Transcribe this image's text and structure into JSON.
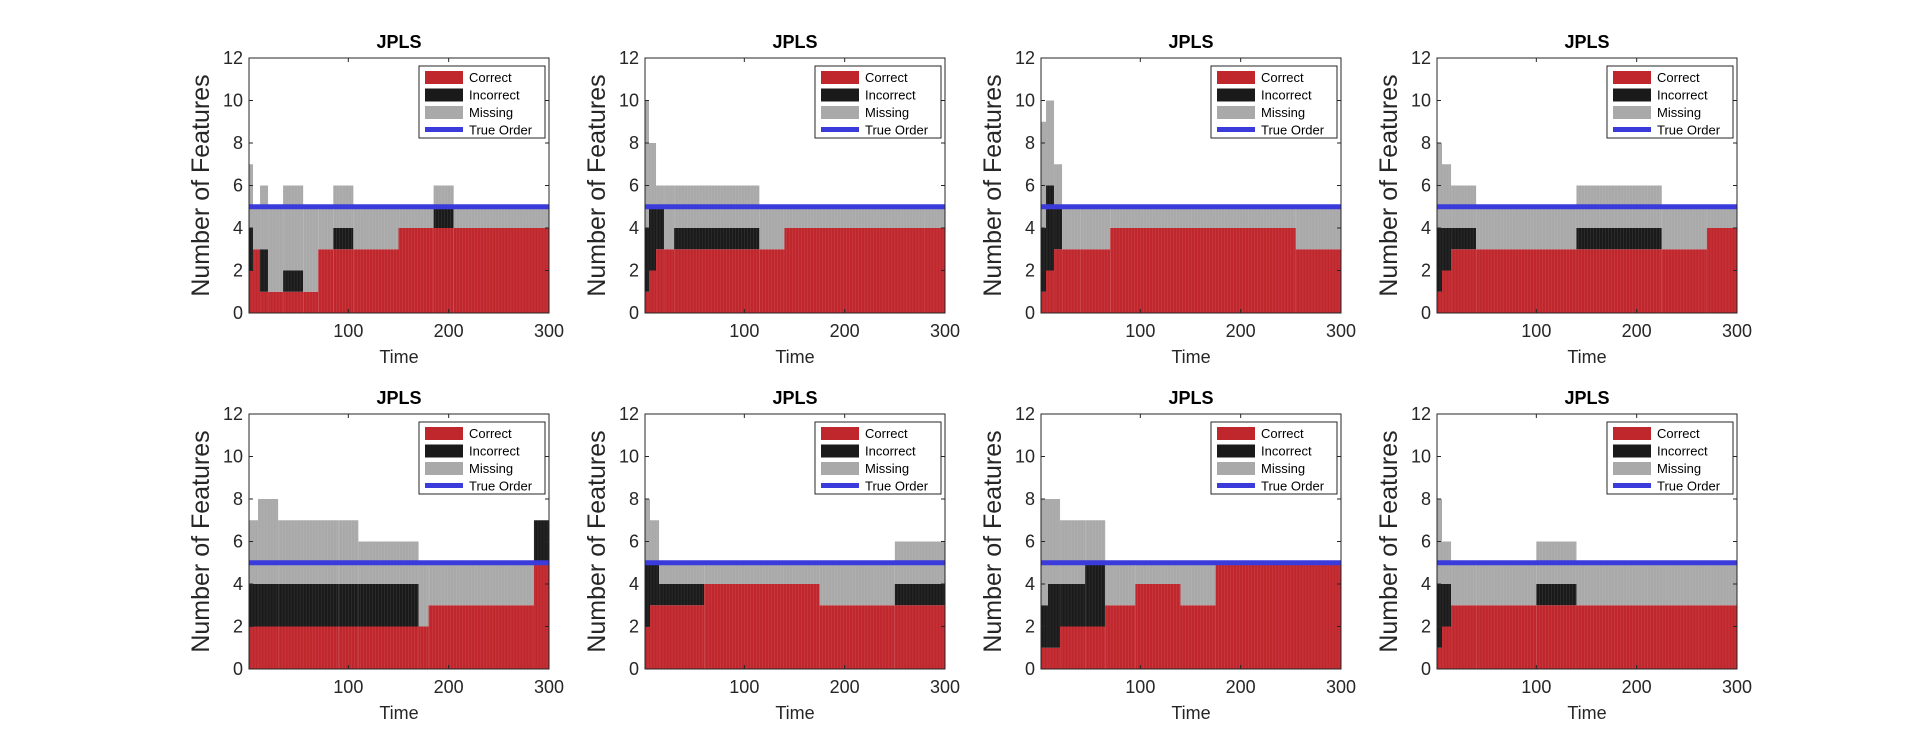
{
  "figure": {
    "background": "#ffffff"
  },
  "legend_labels": {
    "correct": "Correct",
    "incorrect": "Incorrect",
    "missing": "Missing",
    "true_order": "True Order"
  },
  "colors": {
    "correct": "#c0272d",
    "incorrect": "#1a1a1a",
    "missing": "#a9a9a9",
    "true_order": "#3b3bdc",
    "axis": "#262626"
  },
  "chart_data": [
    {
      "type": "bar",
      "title": "JPLS",
      "xlabel": "Time",
      "ylabel": "Number of Features",
      "xlim": [
        1,
        300
      ],
      "ylim": [
        0,
        12
      ],
      "xticks": [
        100,
        200,
        300
      ],
      "yticks": [
        0,
        2,
        4,
        6,
        8,
        10,
        12
      ],
      "legend_position": "top-right",
      "true_order": 5,
      "segments": [
        {
          "x0": 1,
          "x1": 5,
          "correct": 2,
          "incorrect": 2,
          "missing": 3
        },
        {
          "x0": 5,
          "x1": 12,
          "correct": 3,
          "incorrect": 0,
          "missing": 2
        },
        {
          "x0": 12,
          "x1": 20,
          "correct": 1,
          "incorrect": 2,
          "missing": 3
        },
        {
          "x0": 20,
          "x1": 35,
          "correct": 1,
          "incorrect": 0,
          "missing": 4
        },
        {
          "x0": 35,
          "x1": 55,
          "correct": 1,
          "incorrect": 1,
          "missing": 4
        },
        {
          "x0": 55,
          "x1": 70,
          "correct": 1,
          "incorrect": 0,
          "missing": 4
        },
        {
          "x0": 70,
          "x1": 85,
          "correct": 3,
          "incorrect": 0,
          "missing": 2
        },
        {
          "x0": 85,
          "x1": 105,
          "correct": 3,
          "incorrect": 1,
          "missing": 2
        },
        {
          "x0": 105,
          "x1": 150,
          "correct": 3,
          "incorrect": 0,
          "missing": 2
        },
        {
          "x0": 150,
          "x1": 185,
          "correct": 4,
          "incorrect": 0,
          "missing": 1
        },
        {
          "x0": 185,
          "x1": 205,
          "correct": 4,
          "incorrect": 1,
          "missing": 1
        },
        {
          "x0": 205,
          "x1": 300,
          "correct": 4,
          "incorrect": 0,
          "missing": 1
        }
      ]
    },
    {
      "type": "bar",
      "title": "JPLS",
      "xlabel": "Time",
      "ylabel": "Number of Features",
      "xlim": [
        1,
        300
      ],
      "ylim": [
        0,
        12
      ],
      "xticks": [
        100,
        200,
        300
      ],
      "yticks": [
        0,
        2,
        4,
        6,
        8,
        10,
        12
      ],
      "legend_position": "top-right",
      "true_order": 5,
      "segments": [
        {
          "x0": 1,
          "x1": 5,
          "correct": 1,
          "incorrect": 3,
          "missing": 6
        },
        {
          "x0": 5,
          "x1": 12,
          "correct": 2,
          "incorrect": 3,
          "missing": 3
        },
        {
          "x0": 12,
          "x1": 20,
          "correct": 3,
          "incorrect": 2,
          "missing": 1
        },
        {
          "x0": 20,
          "x1": 30,
          "correct": 3,
          "incorrect": 0,
          "missing": 3
        },
        {
          "x0": 30,
          "x1": 115,
          "correct": 3,
          "incorrect": 1,
          "missing": 2
        },
        {
          "x0": 115,
          "x1": 140,
          "correct": 3,
          "incorrect": 0,
          "missing": 2
        },
        {
          "x0": 140,
          "x1": 280,
          "correct": 4,
          "incorrect": 0,
          "missing": 1
        },
        {
          "x0": 280,
          "x1": 300,
          "correct": 4,
          "incorrect": 0,
          "missing": 1
        }
      ]
    },
    {
      "type": "bar",
      "title": "JPLS",
      "xlabel": "Time",
      "ylabel": "Number of Features",
      "xlim": [
        1,
        300
      ],
      "ylim": [
        0,
        12
      ],
      "xticks": [
        100,
        200,
        300
      ],
      "yticks": [
        0,
        2,
        4,
        6,
        8,
        10,
        12
      ],
      "legend_position": "top-right",
      "true_order": 5,
      "segments": [
        {
          "x0": 1,
          "x1": 6,
          "correct": 1,
          "incorrect": 3,
          "missing": 5
        },
        {
          "x0": 6,
          "x1": 14,
          "correct": 2,
          "incorrect": 4,
          "missing": 4
        },
        {
          "x0": 14,
          "x1": 22,
          "correct": 3,
          "incorrect": 2,
          "missing": 2
        },
        {
          "x0": 22,
          "x1": 40,
          "correct": 3,
          "incorrect": 0,
          "missing": 2
        },
        {
          "x0": 40,
          "x1": 70,
          "correct": 3,
          "incorrect": 0,
          "missing": 2
        },
        {
          "x0": 70,
          "x1": 255,
          "correct": 4,
          "incorrect": 0,
          "missing": 1
        },
        {
          "x0": 255,
          "x1": 300,
          "correct": 3,
          "incorrect": 0,
          "missing": 2
        }
      ]
    },
    {
      "type": "bar",
      "title": "JPLS",
      "xlabel": "Time",
      "ylabel": "Number of Features",
      "xlim": [
        1,
        300
      ],
      "ylim": [
        0,
        12
      ],
      "xticks": [
        100,
        200,
        300
      ],
      "yticks": [
        0,
        2,
        4,
        6,
        8,
        10,
        12
      ],
      "legend_position": "top-right",
      "true_order": 5,
      "segments": [
        {
          "x0": 1,
          "x1": 6,
          "correct": 1,
          "incorrect": 3,
          "missing": 4
        },
        {
          "x0": 6,
          "x1": 15,
          "correct": 2,
          "incorrect": 2,
          "missing": 3
        },
        {
          "x0": 15,
          "x1": 40,
          "correct": 3,
          "incorrect": 1,
          "missing": 2
        },
        {
          "x0": 40,
          "x1": 140,
          "correct": 3,
          "incorrect": 0,
          "missing": 2
        },
        {
          "x0": 140,
          "x1": 225,
          "correct": 3,
          "incorrect": 1,
          "missing": 2
        },
        {
          "x0": 225,
          "x1": 270,
          "correct": 3,
          "incorrect": 0,
          "missing": 2
        },
        {
          "x0": 270,
          "x1": 300,
          "correct": 4,
          "incorrect": 0,
          "missing": 1
        }
      ]
    },
    {
      "type": "bar",
      "title": "JPLS",
      "xlabel": "Time",
      "ylabel": "Number of Features",
      "xlim": [
        1,
        300
      ],
      "ylim": [
        0,
        12
      ],
      "xticks": [
        100,
        200,
        300
      ],
      "yticks": [
        0,
        2,
        4,
        6,
        8,
        10,
        12
      ],
      "legend_position": "top-right",
      "true_order": 5,
      "segments": [
        {
          "x0": 1,
          "x1": 10,
          "correct": 2,
          "incorrect": 2,
          "missing": 3
        },
        {
          "x0": 10,
          "x1": 30,
          "correct": 2,
          "incorrect": 2,
          "missing": 4
        },
        {
          "x0": 30,
          "x1": 90,
          "correct": 2,
          "incorrect": 2,
          "missing": 3
        },
        {
          "x0": 90,
          "x1": 110,
          "correct": 2,
          "incorrect": 2,
          "missing": 3
        },
        {
          "x0": 110,
          "x1": 170,
          "correct": 2,
          "incorrect": 2,
          "missing": 2
        },
        {
          "x0": 170,
          "x1": 180,
          "correct": 2,
          "incorrect": 0,
          "missing": 3
        },
        {
          "x0": 180,
          "x1": 285,
          "correct": 3,
          "incorrect": 0,
          "missing": 2
        },
        {
          "x0": 285,
          "x1": 300,
          "correct": 5,
          "incorrect": 2,
          "missing": 0
        }
      ]
    },
    {
      "type": "bar",
      "title": "JPLS",
      "xlabel": "Time",
      "ylabel": "Number of Features",
      "xlim": [
        1,
        300
      ],
      "ylim": [
        0,
        12
      ],
      "xticks": [
        100,
        200,
        300
      ],
      "yticks": [
        0,
        2,
        4,
        6,
        8,
        10,
        12
      ],
      "legend_position": "top-right",
      "true_order": 5,
      "segments": [
        {
          "x0": 1,
          "x1": 6,
          "correct": 2,
          "incorrect": 3,
          "missing": 3
        },
        {
          "x0": 6,
          "x1": 15,
          "correct": 3,
          "incorrect": 2,
          "missing": 2
        },
        {
          "x0": 15,
          "x1": 60,
          "correct": 3,
          "incorrect": 1,
          "missing": 1
        },
        {
          "x0": 60,
          "x1": 175,
          "correct": 4,
          "incorrect": 0,
          "missing": 1
        },
        {
          "x0": 175,
          "x1": 250,
          "correct": 3,
          "incorrect": 0,
          "missing": 2
        },
        {
          "x0": 250,
          "x1": 300,
          "correct": 3,
          "incorrect": 1,
          "missing": 2
        }
      ]
    },
    {
      "type": "bar",
      "title": "JPLS",
      "xlabel": "Time",
      "ylabel": "Number of Features",
      "xlim": [
        1,
        300
      ],
      "ylim": [
        0,
        12
      ],
      "xticks": [
        100,
        200,
        300
      ],
      "yticks": [
        0,
        2,
        4,
        6,
        8,
        10,
        12
      ],
      "legend_position": "top-right",
      "true_order": 5,
      "segments": [
        {
          "x0": 1,
          "x1": 8,
          "correct": 1,
          "incorrect": 2,
          "missing": 5
        },
        {
          "x0": 8,
          "x1": 20,
          "correct": 1,
          "incorrect": 3,
          "missing": 4
        },
        {
          "x0": 20,
          "x1": 45,
          "correct": 2,
          "incorrect": 2,
          "missing": 3
        },
        {
          "x0": 45,
          "x1": 65,
          "correct": 2,
          "incorrect": 3,
          "missing": 2
        },
        {
          "x0": 65,
          "x1": 95,
          "correct": 3,
          "incorrect": 0,
          "missing": 2
        },
        {
          "x0": 95,
          "x1": 140,
          "correct": 4,
          "incorrect": 0,
          "missing": 1
        },
        {
          "x0": 140,
          "x1": 175,
          "correct": 3,
          "incorrect": 0,
          "missing": 2
        },
        {
          "x0": 175,
          "x1": 300,
          "correct": 5,
          "incorrect": 0,
          "missing": 0
        }
      ]
    },
    {
      "type": "bar",
      "title": "JPLS",
      "xlabel": "Time",
      "ylabel": "Number of Features",
      "xlim": [
        1,
        300
      ],
      "ylim": [
        0,
        12
      ],
      "xticks": [
        100,
        200,
        300
      ],
      "yticks": [
        0,
        2,
        4,
        6,
        8,
        10,
        12
      ],
      "legend_position": "top-right",
      "true_order": 5,
      "segments": [
        {
          "x0": 1,
          "x1": 6,
          "correct": 1,
          "incorrect": 3,
          "missing": 4
        },
        {
          "x0": 6,
          "x1": 15,
          "correct": 2,
          "incorrect": 2,
          "missing": 2
        },
        {
          "x0": 15,
          "x1": 40,
          "correct": 3,
          "incorrect": 0,
          "missing": 2
        },
        {
          "x0": 40,
          "x1": 100,
          "correct": 3,
          "incorrect": 0,
          "missing": 2
        },
        {
          "x0": 100,
          "x1": 140,
          "correct": 3,
          "incorrect": 1,
          "missing": 2
        },
        {
          "x0": 140,
          "x1": 300,
          "correct": 3,
          "incorrect": 0,
          "missing": 2
        }
      ]
    }
  ]
}
